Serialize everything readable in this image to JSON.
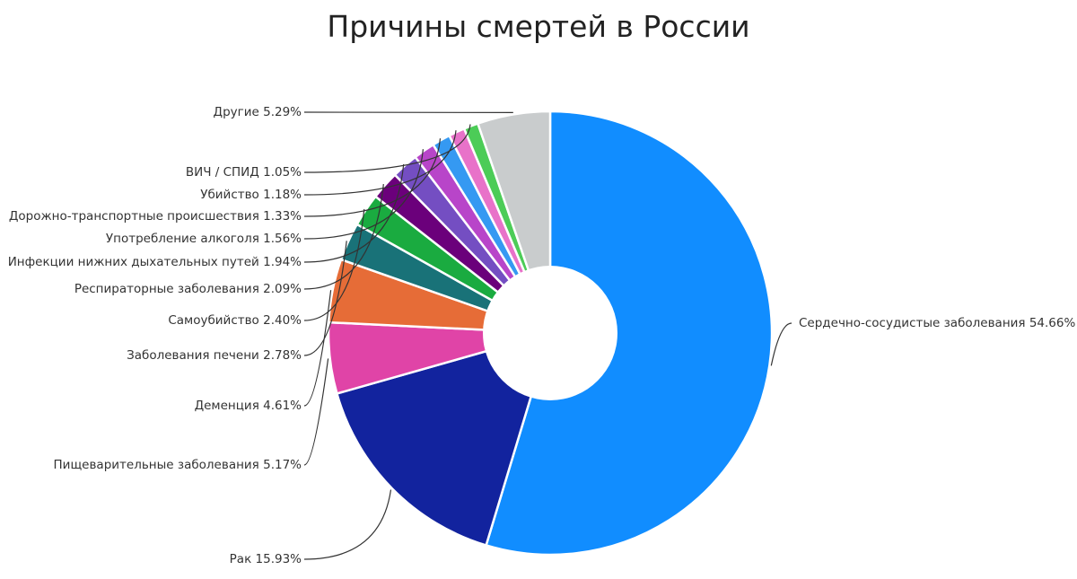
{
  "chart_data": {
    "type": "pie",
    "title": "Причины смертей в России",
    "series": [
      {
        "name": "Сердечно-сосудистые заболевания",
        "value": 54.66,
        "label": "Сердечно-сосудистые заболевания 54.66%",
        "color": "#118dff"
      },
      {
        "name": "Рак",
        "value": 15.93,
        "label": "Рак 15.93%",
        "color": "#12239e"
      },
      {
        "name": "Пищеварительные заболевания",
        "value": 5.17,
        "label": "Пищеварительные заболевания 5.17%",
        "color": "#e044a7"
      },
      {
        "name": "Деменция",
        "value": 4.61,
        "label": "Деменция 4.61%",
        "color": "#e66c37"
      },
      {
        "name": "Заболевания печени",
        "value": 2.78,
        "label": "Заболевания печени 2.78%",
        "color": "#197278"
      },
      {
        "name": "Самоубийство",
        "value": 2.4,
        "label": "Самоубийство 2.40%",
        "color": "#1aab40"
      },
      {
        "name": "Респираторные заболевания",
        "value": 2.09,
        "label": "Респираторные заболевания 2.09%",
        "color": "#6b007b"
      },
      {
        "name": "Инфекции нижних дыхательных путей",
        "value": 1.94,
        "label": "Инфекции нижних дыхательных путей 1.94%",
        "color": "#744ec2"
      },
      {
        "name": "Употребление алкоголя",
        "value": 1.56,
        "label": "Употребление алкоголя 1.56%",
        "color": "#b845c9"
      },
      {
        "name": "Дорожно-транспортные происшествия",
        "value": 1.33,
        "label": "Дорожно-транспортные происшествия 1.33%",
        "color": "#3599f2"
      },
      {
        "name": "Убийство",
        "value": 1.18,
        "label": "Убийство 1.18%",
        "color": "#e872c9"
      },
      {
        "name": "ВИЧ / СПИД",
        "value": 1.05,
        "label": "ВИЧ / СПИД 1.05%",
        "color": "#4ccc57"
      },
      {
        "name": "Другие",
        "value": 5.29,
        "label": "Другие  5.29%",
        "color": "#c9cccd"
      }
    ]
  }
}
